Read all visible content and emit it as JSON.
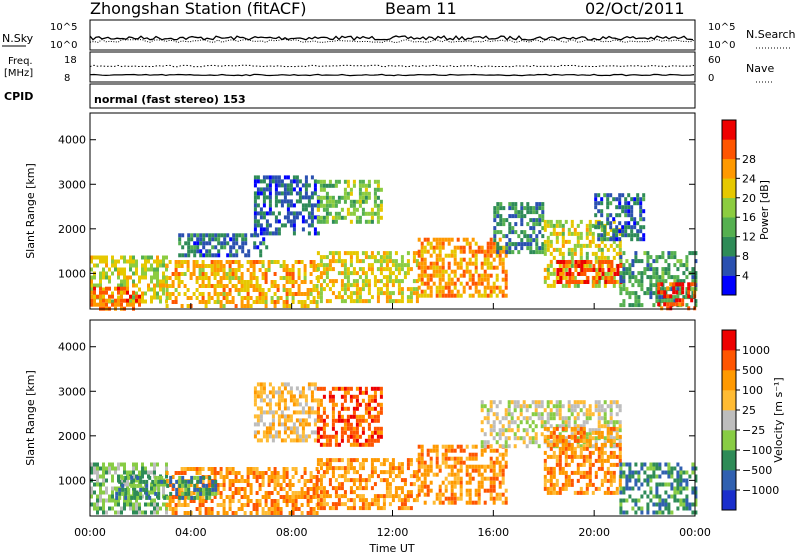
{
  "header": {
    "station": "Zhongshan Station (fitACF)",
    "beam": "Beam 11",
    "date": "02/Oct/2011"
  },
  "nsky_panel": {
    "left_label": "N.Sky",
    "left_ticks": [
      "10^5",
      "10^0"
    ],
    "right_label": "N.Search",
    "right_ticks": [
      "10^5",
      "10^0"
    ]
  },
  "freq_panel": {
    "left_label_1": "Freq.",
    "left_label_2": "[MHz]",
    "left_ticks": [
      "18",
      "8"
    ],
    "right_label": "Nave",
    "right_ticks": [
      "60",
      "0"
    ]
  },
  "cpid": {
    "label": "CPID",
    "mode": "normal (fast stereo) 153"
  },
  "colors": {
    "power_scale": [
      "#0000ff",
      "#2a50b0",
      "#2e8b57",
      "#55b050",
      "#8ccc40",
      "#e6c800",
      "#ff9900",
      "#ff5500",
      "#ee0000"
    ],
    "velocity_scale": [
      "#ee0000",
      "#ff5500",
      "#ff9900",
      "#ffbb33",
      "#bdbdbd",
      "#88cc44",
      "#2e8b57",
      "#3060b0",
      "#1a2ecc"
    ]
  },
  "chart_data": [
    {
      "type": "heatmap",
      "name": "power",
      "xlabel": "Time UT",
      "ylabel": "Slant Range [km]",
      "x_ticks": [
        "00:00",
        "04:00",
        "08:00",
        "12:00",
        "16:00",
        "20:00",
        "00:00"
      ],
      "xlim": [
        0,
        24
      ],
      "ylim": [
        200,
        4600
      ],
      "y_ticks": [
        1000,
        2000,
        3000,
        4000
      ],
      "colorbar": {
        "label": "Power [dB]",
        "ticks": [
          4,
          8,
          12,
          16,
          20,
          24,
          28
        ],
        "range": [
          0,
          32
        ]
      },
      "regions": [
        {
          "t0": 0.0,
          "t1": 3.0,
          "r0": 400,
          "r1": 1400,
          "level": 18
        },
        {
          "t0": 0.0,
          "t1": 2.0,
          "r0": 200,
          "r1": 700,
          "level": 26
        },
        {
          "t0": 3.0,
          "t1": 9.0,
          "r0": 300,
          "r1": 1300,
          "level": 22
        },
        {
          "t0": 3.5,
          "t1": 7.0,
          "r0": 1400,
          "r1": 1900,
          "level": 6
        },
        {
          "t0": 6.5,
          "t1": 9.0,
          "r0": 1900,
          "r1": 3200,
          "level": 5
        },
        {
          "t0": 9.0,
          "t1": 11.5,
          "r0": 2200,
          "r1": 3100,
          "level": 14
        },
        {
          "t0": 9.0,
          "t1": 13.0,
          "r0": 400,
          "r1": 1500,
          "level": 20
        },
        {
          "t0": 13.0,
          "t1": 16.5,
          "r0": 500,
          "r1": 1800,
          "level": 24
        },
        {
          "t0": 16.0,
          "t1": 18.0,
          "r0": 1500,
          "r1": 2600,
          "level": 8
        },
        {
          "t0": 18.0,
          "t1": 21.0,
          "r0": 700,
          "r1": 2200,
          "level": 18
        },
        {
          "t0": 18.5,
          "t1": 21.0,
          "r0": 800,
          "r1": 1300,
          "level": 30
        },
        {
          "t0": 21.0,
          "t1": 24.0,
          "r0": 300,
          "r1": 1500,
          "level": 10
        },
        {
          "t0": 22.5,
          "t1": 24.0,
          "r0": 200,
          "r1": 800,
          "level": 30
        },
        {
          "t0": 20.0,
          "t1": 22.0,
          "r0": 1800,
          "r1": 2800,
          "level": 6
        }
      ]
    },
    {
      "type": "heatmap",
      "name": "velocity",
      "xlabel": "Time UT",
      "ylabel": "Slant Range [km]",
      "x_ticks": [
        "00:00",
        "04:00",
        "08:00",
        "12:00",
        "16:00",
        "20:00",
        "00:00"
      ],
      "xlim": [
        0,
        24
      ],
      "ylim": [
        200,
        4600
      ],
      "y_ticks": [
        1000,
        2000,
        3000,
        4000
      ],
      "colorbar": {
        "label": "Velocity [m s⁻¹]",
        "ticks": [
          "1000",
          "500",
          "100",
          "25",
          "−25",
          "−100",
          "−500",
          "−1000"
        ]
      },
      "regions": [
        {
          "t0": 0.0,
          "t1": 3.0,
          "r0": 300,
          "r1": 1400,
          "level": 5
        },
        {
          "t0": 3.0,
          "t1": 9.0,
          "r0": 300,
          "r1": 1300,
          "level": 2
        },
        {
          "t0": 6.5,
          "t1": 9.0,
          "r0": 1900,
          "r1": 3200,
          "level": 3
        },
        {
          "t0": 9.0,
          "t1": 11.5,
          "r0": 1800,
          "r1": 3100,
          "level": 1
        },
        {
          "t0": 9.0,
          "t1": 13.0,
          "r0": 400,
          "r1": 1500,
          "level": 2
        },
        {
          "t0": 13.0,
          "t1": 16.5,
          "r0": 500,
          "r1": 1800,
          "level": 2
        },
        {
          "t0": 15.5,
          "t1": 21.0,
          "r0": 1800,
          "r1": 2800,
          "level": 4
        },
        {
          "t0": 18.0,
          "t1": 21.0,
          "r0": 700,
          "r1": 2200,
          "level": 2
        },
        {
          "t0": 21.0,
          "t1": 24.0,
          "r0": 300,
          "r1": 1400,
          "level": 6
        },
        {
          "t0": 1.0,
          "t1": 5.0,
          "r0": 600,
          "r1": 1100,
          "level": 6
        }
      ]
    }
  ]
}
